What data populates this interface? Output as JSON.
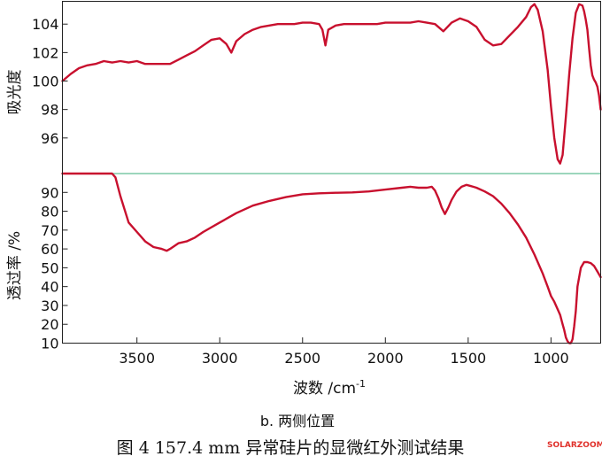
{
  "chart_data": [
    {
      "type": "line",
      "ylabel": "吸光度",
      "xlim": [
        3950,
        700
      ],
      "ylim": [
        93.5,
        105.6
      ],
      "yticks": [
        96,
        98,
        100,
        102,
        104
      ],
      "xticks": [
        3500,
        3000,
        2500,
        2000,
        1500,
        1000
      ],
      "series": [
        {
          "color": "#c8102e",
          "x": [
            3950,
            3900,
            3850,
            3800,
            3750,
            3700,
            3650,
            3600,
            3550,
            3500,
            3450,
            3400,
            3350,
            3300,
            3250,
            3200,
            3150,
            3100,
            3050,
            3000,
            2960,
            2930,
            2900,
            2850,
            2800,
            2750,
            2700,
            2650,
            2600,
            2550,
            2500,
            2450,
            2400,
            2380,
            2362,
            2345,
            2300,
            2250,
            2200,
            2150,
            2100,
            2050,
            2000,
            1950,
            1900,
            1850,
            1800,
            1750,
            1700,
            1650,
            1600,
            1550,
            1500,
            1450,
            1400,
            1350,
            1300,
            1250,
            1200,
            1150,
            1120,
            1100,
            1080,
            1050,
            1020,
            1000,
            980,
            960,
            945,
            930,
            910,
            890,
            870,
            850,
            830,
            810,
            800,
            790,
            780,
            770,
            760,
            750,
            740,
            730,
            720,
            710,
            700
          ],
          "y": [
            100.0,
            100.5,
            100.9,
            101.1,
            101.2,
            101.4,
            101.3,
            101.4,
            101.3,
            101.4,
            101.2,
            101.2,
            101.2,
            101.2,
            101.5,
            101.8,
            102.1,
            102.5,
            102.9,
            103.0,
            102.6,
            102.0,
            102.8,
            103.3,
            103.6,
            103.8,
            103.9,
            104.0,
            104.0,
            104.0,
            104.1,
            104.1,
            104.0,
            103.6,
            102.5,
            103.6,
            103.9,
            104.0,
            104.0,
            104.0,
            104.0,
            104.0,
            104.1,
            104.1,
            104.1,
            104.1,
            104.2,
            104.1,
            104.0,
            103.5,
            104.1,
            104.4,
            104.2,
            103.8,
            102.9,
            102.5,
            102.6,
            103.2,
            103.8,
            104.5,
            105.2,
            105.4,
            105.0,
            103.5,
            100.8,
            98.2,
            96.0,
            94.5,
            94.2,
            94.8,
            97.5,
            100.5,
            103.0,
            104.8,
            105.4,
            105.3,
            104.9,
            104.3,
            103.6,
            102.3,
            101.1,
            100.4,
            100.1,
            99.9,
            99.6,
            99.0,
            98.0
          ]
        }
      ]
    },
    {
      "type": "line",
      "ylabel": "透过率 /%",
      "xlabel": "波数 /cm",
      "xlabel_sup": "-1",
      "xlim": [
        3950,
        700
      ],
      "ylim": [
        10,
        100
      ],
      "yticks": [
        10,
        20,
        30,
        40,
        50,
        60,
        70,
        80,
        90
      ],
      "xticks": [
        3500,
        3000,
        2500,
        2000,
        1500,
        1000
      ],
      "reference_line": {
        "value": 100,
        "color": "#7cc9a6"
      },
      "series": [
        {
          "color": "#c8102e",
          "x": [
            3950,
            3900,
            3800,
            3700,
            3680,
            3650,
            3630,
            3600,
            3550,
            3500,
            3450,
            3400,
            3350,
            3320,
            3300,
            3250,
            3200,
            3150,
            3100,
            3000,
            2900,
            2800,
            2700,
            2600,
            2500,
            2400,
            2300,
            2200,
            2100,
            2000,
            1900,
            1850,
            1800,
            1750,
            1720,
            1700,
            1680,
            1660,
            1640,
            1620,
            1600,
            1570,
            1540,
            1510,
            1490,
            1470,
            1450,
            1400,
            1350,
            1300,
            1250,
            1200,
            1150,
            1100,
            1050,
            1020,
            1000,
            980,
            960,
            945,
            930,
            920,
            910,
            900,
            890,
            880,
            870,
            860,
            850,
            840,
            820,
            800,
            780,
            760,
            740,
            720,
            700
          ],
          "y": [
            100,
            100,
            100,
            100,
            100,
            100,
            98,
            88,
            74,
            69,
            64,
            61,
            60,
            59,
            60,
            63,
            64,
            66,
            69,
            74,
            79,
            83,
            85.5,
            87.5,
            89,
            89.5,
            89.8,
            90,
            90.5,
            91.5,
            92.5,
            93,
            92.5,
            92.5,
            93,
            91,
            87,
            82,
            78.5,
            82,
            86,
            90.5,
            93,
            94,
            93.5,
            93,
            92.5,
            90.5,
            88,
            84,
            79,
            73,
            66,
            57,
            47,
            40,
            35,
            32,
            28,
            25,
            20,
            17,
            13,
            11,
            10,
            10,
            12,
            19,
            27,
            40,
            50,
            53,
            53,
            52.5,
            51,
            48,
            45
          ]
        }
      ]
    }
  ],
  "captions": {
    "sublabel": "b. 两侧位置",
    "figure": "图 4  157.4 mm 异常硅片的显微红外测试结果",
    "watermark": "SOLARZOOM"
  }
}
